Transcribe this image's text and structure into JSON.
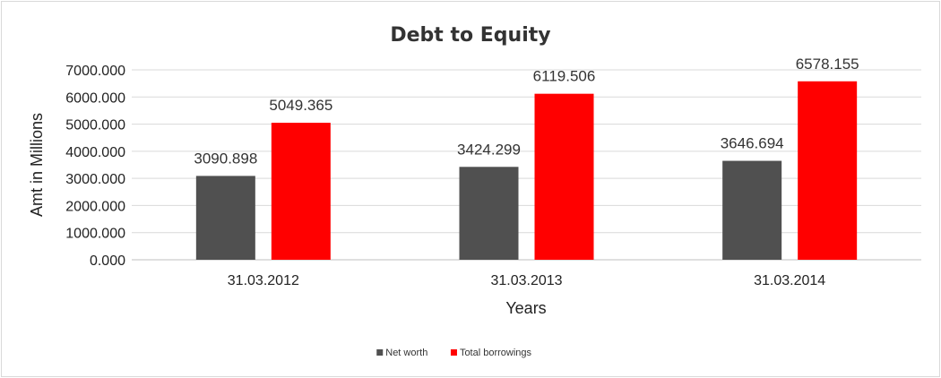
{
  "chart_data": {
    "type": "bar",
    "title": "Debt to Equity",
    "xlabel": "Years",
    "ylabel": "Amt in Millions",
    "categories": [
      "31.03.2012",
      "31.03.2013",
      "31.03.2014"
    ],
    "series": [
      {
        "name": "Net worth",
        "color": "#505050",
        "values": [
          3090.898,
          3424.299,
          3646.694
        ],
        "labels": [
          "3090.898",
          "3424.299",
          "3646.694"
        ]
      },
      {
        "name": "Total borrowings",
        "color": "#ff0000",
        "values": [
          5049.365,
          6119.506,
          6578.155
        ],
        "labels": [
          "5049.365",
          "6119.506",
          "6578.155"
        ]
      }
    ],
    "ylim": [
      0,
      7000
    ],
    "yticks": [
      "0.000",
      "1000.000",
      "2000.000",
      "3000.000",
      "4000.000",
      "5000.000",
      "6000.000",
      "7000.000"
    ],
    "grid": true,
    "legend_position": "bottom"
  }
}
